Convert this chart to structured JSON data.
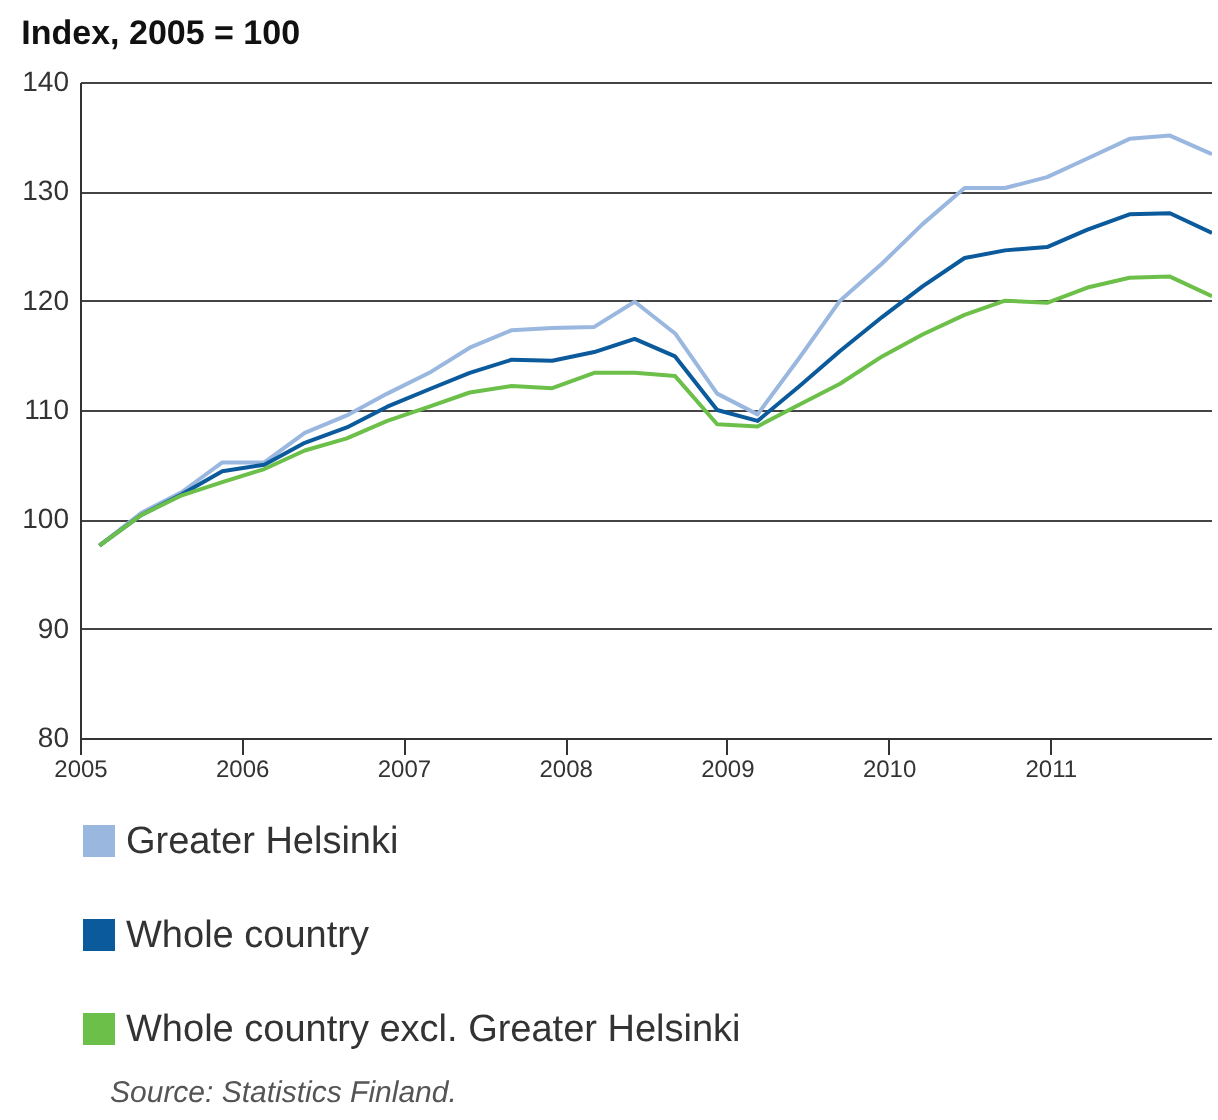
{
  "chart_data": {
    "type": "line",
    "title": "Index, 2005 = 100",
    "x": [
      2005.12,
      2005.38,
      2005.63,
      2005.88,
      2006.14,
      2006.39,
      2006.65,
      2006.9,
      2007.16,
      2007.41,
      2007.67,
      2007.92,
      2008.18,
      2008.43,
      2008.68,
      2008.94,
      2009.19,
      2009.45,
      2009.7,
      2009.96,
      2010.21,
      2010.47,
      2010.72,
      2010.98,
      2011.23,
      2011.49,
      2011.74,
      2012.0
    ],
    "series": [
      {
        "name": "Greater Helsinki",
        "color": "#9ab7e0",
        "values": [
          97.6,
          100.6,
          102.5,
          105.2,
          105.2,
          107.9,
          109.5,
          111.5,
          113.4,
          115.7,
          117.3,
          117.5,
          117.6,
          119.9,
          117.0,
          111.5,
          109.6,
          114.8,
          120.0,
          123.4,
          127.0,
          130.3,
          130.3,
          131.3,
          133.0,
          134.8,
          135.1,
          133.4
        ]
      },
      {
        "name": "Whole country",
        "color": "#0a5a9c",
        "values": [
          97.6,
          100.4,
          102.3,
          104.4,
          105.0,
          107.0,
          108.4,
          110.3,
          111.9,
          113.4,
          114.6,
          114.5,
          115.3,
          116.5,
          114.9,
          110.0,
          109.0,
          112.2,
          115.4,
          118.5,
          121.3,
          123.9,
          124.6,
          124.9,
          126.5,
          127.9,
          128.0,
          126.2
        ]
      },
      {
        "name": "Whole country excl. Greater Helsinki",
        "color": "#6cc04a",
        "values": [
          97.6,
          100.4,
          102.2,
          103.4,
          104.6,
          106.3,
          107.4,
          109.0,
          110.3,
          111.6,
          112.2,
          112.0,
          113.4,
          113.4,
          113.1,
          108.7,
          108.5,
          110.5,
          112.4,
          114.9,
          116.9,
          118.7,
          120.0,
          119.8,
          121.2,
          122.1,
          122.2,
          120.4
        ]
      }
    ],
    "xlim": [
      2005,
      2012
    ],
    "xticks": [
      2005,
      2006,
      2007,
      2008,
      2009,
      2010,
      2011
    ],
    "ylim": [
      80,
      140
    ],
    "yticks": [
      80,
      90,
      100,
      110,
      120,
      130,
      140
    ],
    "grid": "y",
    "legend": "bottom",
    "line_style": "solid",
    "annotations": [
      "Source: Statistics Finland."
    ]
  }
}
